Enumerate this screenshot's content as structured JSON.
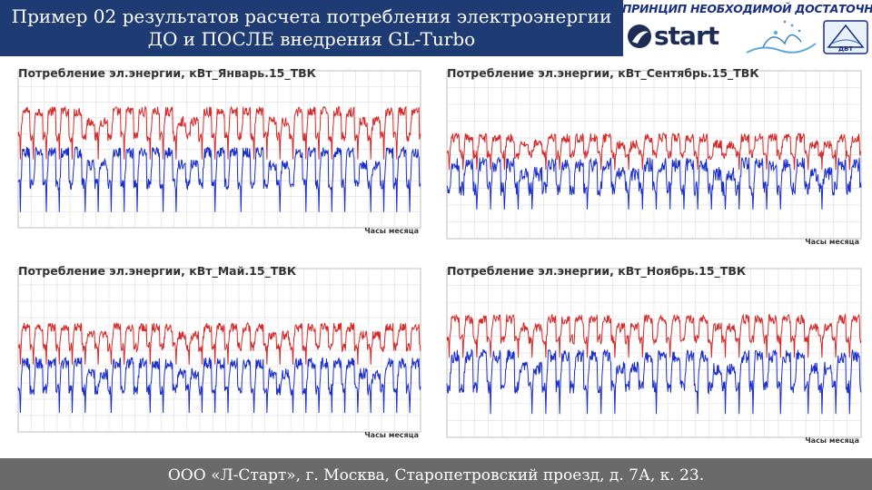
{
  "header": {
    "line1": "Пример 02 результатов расчета потребления электроэнергии",
    "line2": "ДО и ПОСЛЕ внедрения GL-Turbo"
  },
  "branding": {
    "motto": "ПРИНЦИП НЕОБХОДИМОЙ ДОСТАТОЧНОСТИ",
    "logo_text": "start",
    "badge_text": "ДВТ"
  },
  "footer": {
    "text": "ООО «Л-Старт», г. Москва, Старопетровский проезд, д. 7А, к. 23."
  },
  "colors": {
    "before": "#d42a2a",
    "after": "#1a2ecc",
    "header_bg": "#1f3b73",
    "footer_bg": "#6a6a6a"
  },
  "chart_data": [
    {
      "type": "line",
      "title": "Потребление эл.энергии, кВт_Январь.15_ТВК",
      "xlabel": "Часы месяца",
      "ylim": [
        0,
        2500
      ],
      "xlim": [
        0,
        744
      ],
      "grid": true,
      "series": [
        {
          "color": "#d42a2a",
          "profile": {
            "base": 1850,
            "night": 1450,
            "amp_noise": 80
          }
        },
        {
          "color": "#1a2ecc",
          "profile": {
            "base": 1200,
            "night": 700,
            "amp_noise": 90
          }
        }
      ]
    },
    {
      "type": "line",
      "title": "Потребление эл.энергии, кВт_Сентябрь.15_ТВК",
      "xlabel": "Часы месяца",
      "ylim": [
        0,
        2500
      ],
      "xlim": [
        0,
        720
      ],
      "grid": true,
      "series": [
        {
          "color": "#d42a2a",
          "profile": {
            "base": 1500,
            "night": 1250,
            "amp_noise": 70
          }
        },
        {
          "color": "#1a2ecc",
          "profile": {
            "base": 1100,
            "night": 750,
            "amp_noise": 110
          }
        }
      ]
    },
    {
      "type": "line",
      "title": "Потребление эл.энергии, кВт_Май.15_ТВК",
      "xlabel": "Часы месяца",
      "ylim": [
        0,
        2500
      ],
      "xlim": [
        0,
        744
      ],
      "grid": true,
      "series": [
        {
          "color": "#d42a2a",
          "profile": {
            "base": 1600,
            "night": 1300,
            "amp_noise": 70
          }
        },
        {
          "color": "#1a2ecc",
          "profile": {
            "base": 1050,
            "night": 650,
            "amp_noise": 90
          }
        }
      ]
    },
    {
      "type": "line",
      "title": "Потребление эл.энергии, кВт_Ноябрь.15_ТВК",
      "xlabel": "Часы месяца",
      "ylim": [
        0,
        2500
      ],
      "xlim": [
        0,
        720
      ],
      "grid": true,
      "series": [
        {
          "color": "#d42a2a",
          "profile": {
            "base": 1750,
            "night": 1450,
            "amp_noise": 70
          }
        },
        {
          "color": "#1a2ecc",
          "profile": {
            "base": 1200,
            "night": 750,
            "amp_noise": 100
          }
        }
      ]
    }
  ]
}
